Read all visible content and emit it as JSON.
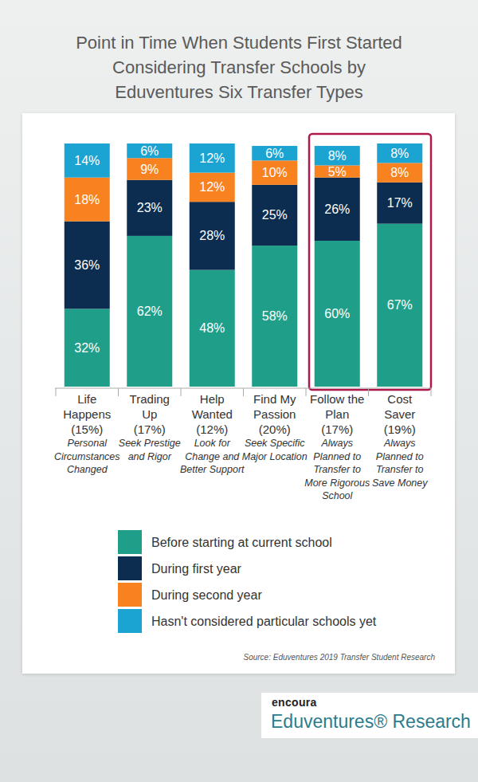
{
  "chart_data": {
    "type": "bar",
    "title": "Point in Time When Students First Started Considering Transfer Schools by Eduventures Six Transfer Types",
    "stacked": true,
    "data_labels": true,
    "legend": "bottom",
    "grid": false,
    "tick_labels": "x",
    "ylim": [
      0,
      100
    ],
    "yticks": [],
    "categories": [
      "Life Happens (15%)",
      "Trading Up (17%)",
      "Help Wanted (12%)",
      "Find My Passion (20%)",
      "Follow the Plan (17%)",
      "Cost Saver (19%)"
    ],
    "category_descriptions": [
      "Personal Circumstances Changed",
      "Seek Prestige and Rigor",
      "Look for Change and Better Support",
      "Seek Specific Major Location",
      "Always Planned to Transfer to More Rigorous School",
      "Always Planned to Transfer to Save Money"
    ],
    "series": [
      {
        "name": "Before starting at current school",
        "color": "#1f9e89",
        "values": [
          32,
          62,
          48,
          58,
          60,
          67
        ],
        "value_labels": [
          "32%",
          "62%",
          "48%",
          "58%",
          "60%",
          "67%"
        ]
      },
      {
        "name": "During first year",
        "color": "#0c2d4f",
        "values": [
          36,
          23,
          28,
          25,
          26,
          17
        ],
        "value_labels": [
          "36%",
          "23%",
          "28%",
          "25%",
          "26%",
          "17%"
        ]
      },
      {
        "name": "During second year",
        "color": "#f7821f",
        "values": [
          18,
          9,
          12,
          10,
          5,
          8
        ],
        "value_labels": [
          "18%",
          "9%",
          "12%",
          "10%",
          "5%",
          "8%"
        ]
      },
      {
        "name": "Hasn't considered particular schools yet",
        "color": "#1ba3d2",
        "values": [
          14,
          6,
          12,
          6,
          8,
          8
        ],
        "value_labels": [
          "14%",
          "6%",
          "12%",
          "6%",
          "8%",
          "8%"
        ]
      }
    ],
    "source": "Source: Eduventures 2019 Transfer Student Research",
    "logo_brand": "encoura",
    "logo_text": "Eduventures® Research"
  }
}
